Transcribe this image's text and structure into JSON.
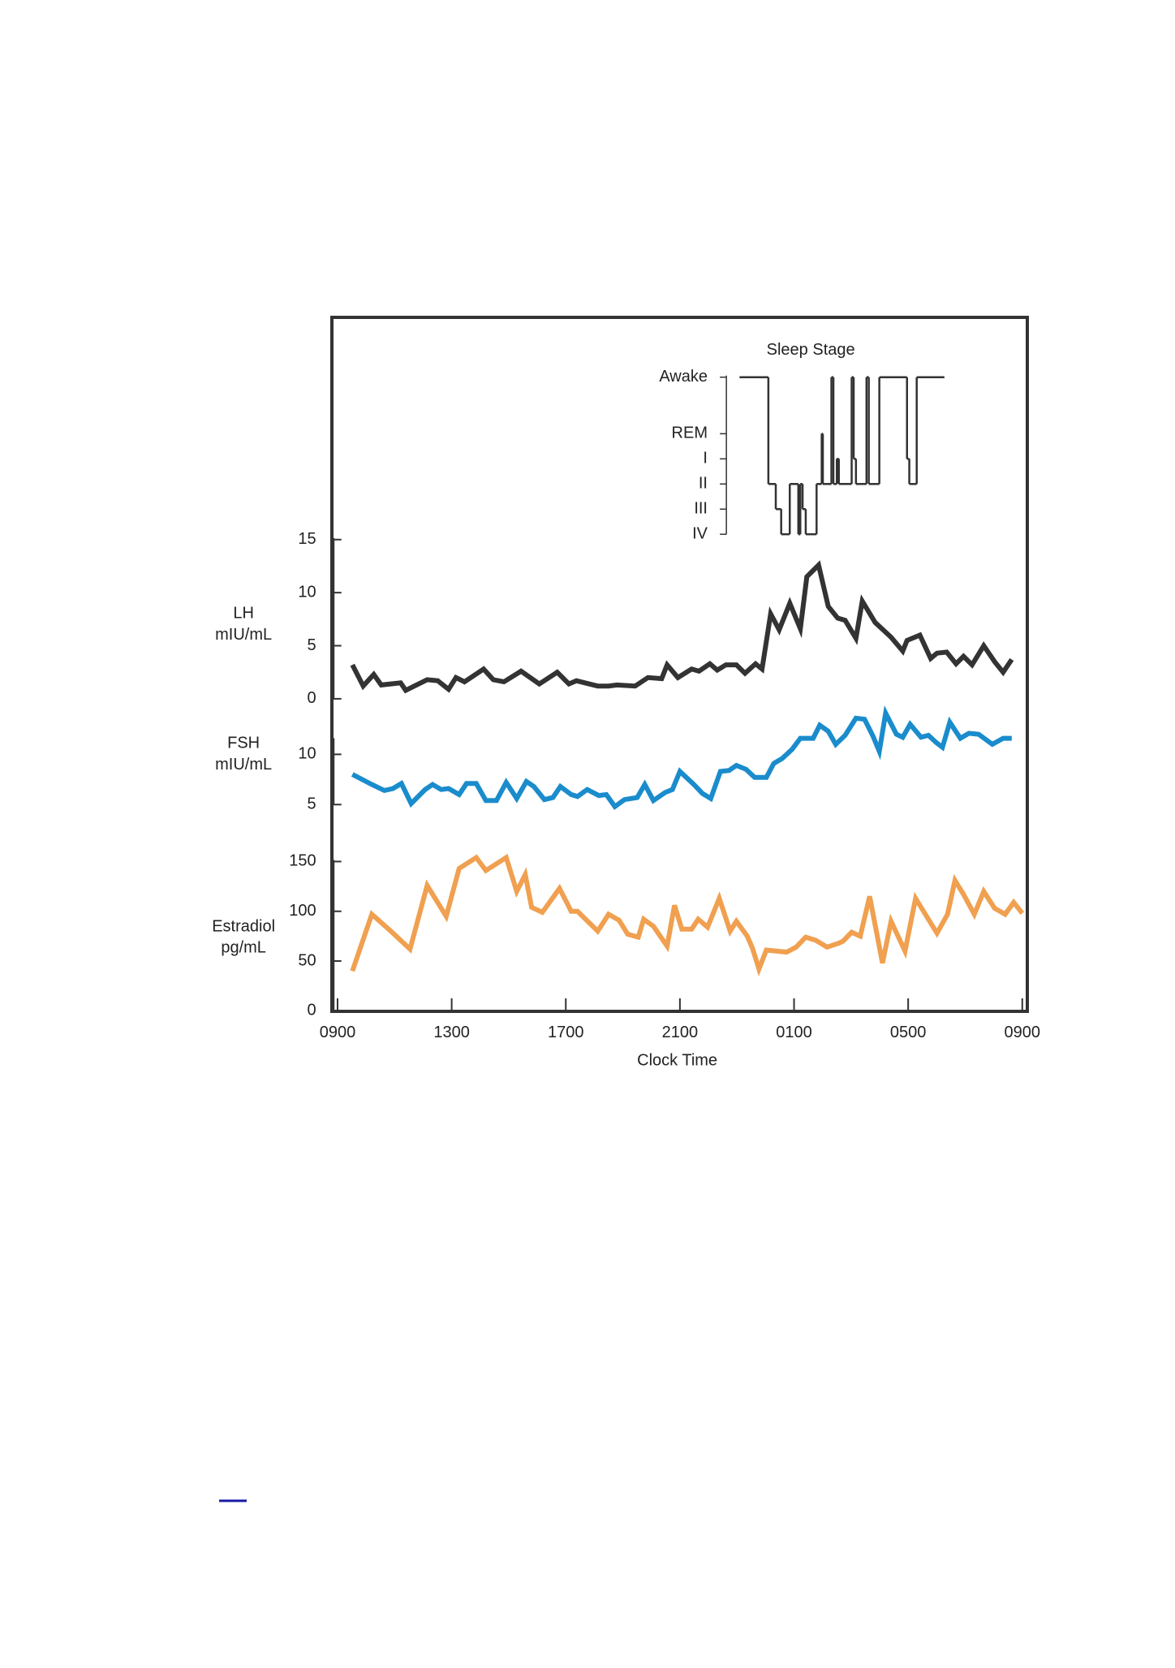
{
  "chart_data": [
    {
      "type": "step",
      "title": "Sleep Stage",
      "color": "#333333",
      "x": [
        14.09,
        15.1,
        15.36,
        15.55,
        15.85,
        16.15,
        16.22,
        16.3,
        16.41,
        16.79,
        16.97,
        17.01,
        17.31,
        17.38,
        17.5,
        17.57,
        18.02,
        18.09,
        18.17,
        18.54,
        18.62,
        18.99,
        19.96,
        20.04,
        20.3,
        21.27
      ],
      "values": [
        6.25,
        2,
        1,
        0,
        2,
        0,
        2,
        1,
        0,
        2,
        4,
        2,
        6.25,
        2,
        3,
        2,
        6.25,
        3,
        2,
        6.25,
        2,
        6.25,
        3,
        2,
        6.25,
        6.25
      ],
      "xlim": [
        0,
        24
      ],
      "ylim": [
        0,
        6.25
      ],
      "yticks": [
        {
          "value": 6.25,
          "label": "Awake"
        },
        {
          "value": 4,
          "label": "REM"
        },
        {
          "value": 3,
          "label": "I"
        },
        {
          "value": 2,
          "label": "II"
        },
        {
          "value": 1,
          "label": "III"
        },
        {
          "value": 0,
          "label": "IV"
        }
      ]
    },
    {
      "type": "line",
      "ylabel": [
        "LH",
        "mIU/mL"
      ],
      "color": "#333333",
      "x": [
        0.52,
        0.9,
        1.27,
        1.53,
        2.21,
        2.39,
        3.14,
        3.51,
        3.89,
        4.15,
        4.45,
        5.12,
        5.46,
        5.83,
        6.43,
        7.07,
        7.7,
        8.11,
        8.37,
        9.12,
        9.5,
        9.79,
        10.43,
        10.88,
        11.36,
        11.55,
        11.93,
        12.41,
        12.67,
        13.05,
        13.31,
        13.61,
        13.98,
        14.28,
        14.65,
        14.88,
        15.18,
        15.48,
        15.85,
        16.22,
        16.45,
        16.86,
        17.2,
        17.53,
        17.79,
        18.17,
        18.39,
        18.84,
        19.4,
        19.81,
        19.96,
        20.41,
        20.79,
        21.01,
        21.35,
        21.68,
        21.94,
        22.24,
        22.65,
        23.03,
        23.33,
        23.63
      ],
      "values": [
        3.2,
        1.2,
        2.3,
        1.3,
        1.5,
        0.8,
        1.8,
        1.7,
        0.9,
        2.0,
        1.6,
        2.8,
        1.8,
        1.6,
        2.6,
        1.4,
        2.5,
        1.4,
        1.7,
        1.2,
        1.2,
        1.3,
        1.2,
        2.0,
        1.9,
        3.2,
        2.0,
        2.8,
        2.6,
        3.3,
        2.7,
        3.2,
        3.2,
        2.4,
        3.3,
        2.8,
        8.0,
        6.5,
        9.0,
        6.6,
        11.5,
        12.6,
        8.7,
        7.6,
        7.4,
        5.7,
        9.2,
        7.2,
        5.8,
        4.5,
        5.5,
        6.0,
        3.8,
        4.3,
        4.4,
        3.3,
        4.0,
        3.2,
        5.0,
        3.5,
        2.5,
        3.7
      ],
      "xlim": [
        0,
        24
      ],
      "ylim": [
        0,
        15
      ],
      "yticks": [
        0,
        5,
        10,
        15
      ]
    },
    {
      "type": "line",
      "ylabel": [
        "FSH",
        "mIU/mL"
      ],
      "color": "#1a8ccc",
      "x": [
        0.52,
        1.2,
        1.64,
        1.94,
        2.24,
        2.58,
        3.07,
        3.33,
        3.63,
        3.89,
        4.26,
        4.52,
        4.86,
        5.2,
        5.57,
        5.91,
        6.28,
        6.62,
        6.88,
        7.25,
        7.55,
        7.81,
        8.19,
        8.41,
        8.75,
        9.16,
        9.42,
        9.72,
        10.06,
        10.5,
        10.77,
        11.07,
        11.48,
        11.74,
        12.0,
        12.49,
        12.79,
        13.08,
        13.42,
        13.72,
        13.98,
        14.32,
        14.62,
        15.03,
        15.29,
        15.59,
        15.93,
        16.22,
        16.67,
        16.9,
        17.2,
        17.46,
        17.79,
        18.17,
        18.47,
        18.77,
        18.99,
        19.21,
        19.59,
        19.81,
        20.07,
        20.45,
        20.71,
        20.97,
        21.2,
        21.46,
        21.83,
        22.13,
        22.47,
        22.95,
        23.33,
        23.63
      ],
      "values": [
        8.0,
        7.0,
        6.4,
        6.6,
        7.1,
        5.1,
        6.5,
        7.0,
        6.5,
        6.6,
        6.0,
        7.1,
        7.1,
        5.4,
        5.4,
        7.2,
        5.6,
        7.3,
        6.8,
        5.5,
        5.7,
        6.8,
        6.0,
        5.8,
        6.5,
        5.9,
        6.0,
        4.8,
        5.5,
        5.7,
        7.0,
        5.4,
        6.2,
        6.5,
        8.3,
        7.0,
        6.1,
        5.6,
        8.3,
        8.4,
        8.9,
        8.5,
        7.7,
        7.7,
        9.1,
        9.6,
        10.5,
        11.6,
        11.6,
        12.9,
        12.3,
        11.0,
        11.9,
        13.6,
        13.5,
        11.8,
        10.3,
        14.1,
        12.0,
        11.7,
        13.0,
        11.7,
        11.9,
        11.2,
        10.7,
        13.2,
        11.6,
        12.1,
        12.0,
        11.0,
        11.6,
        11.6
      ],
      "xlim": [
        0,
        24
      ],
      "ylim": [
        5,
        15
      ],
      "yticks": [
        5,
        10
      ]
    },
    {
      "type": "line",
      "ylabel": [
        "Estradiol",
        "pg/mL"
      ],
      "xlabel": "Clock Time",
      "color": "#f0a050",
      "x": [
        0.52,
        1.2,
        1.87,
        2.54,
        3.14,
        3.81,
        4.26,
        4.86,
        5.2,
        5.91,
        6.28,
        6.58,
        6.8,
        7.18,
        7.78,
        8.19,
        8.41,
        9.12,
        9.5,
        9.87,
        10.17,
        10.54,
        10.73,
        11.07,
        11.55,
        11.81,
        12.07,
        12.41,
        12.64,
        12.97,
        13.38,
        13.76,
        13.98,
        14.36,
        14.54,
        14.77,
        15.03,
        15.74,
        16.07,
        16.41,
        16.75,
        17.16,
        17.57,
        17.72,
        18.02,
        18.32,
        18.65,
        19.1,
        19.4,
        19.89,
        20.26,
        21.01,
        21.38,
        21.64,
        21.94,
        22.32,
        22.65,
        23.03,
        23.4,
        23.7,
        24.0
      ],
      "values": [
        40,
        97,
        80,
        62,
        126,
        95,
        143,
        154,
        141,
        154,
        120,
        137,
        104,
        99,
        123,
        100,
        100,
        80,
        97,
        91,
        77,
        74,
        92,
        85,
        65,
        106,
        82,
        82,
        92,
        84,
        113,
        80,
        90,
        75,
        63,
        42,
        61,
        59,
        64,
        74,
        71,
        64,
        68,
        70,
        79,
        75,
        115,
        48,
        90,
        60,
        113,
        78,
        97,
        131,
        117,
        97,
        120,
        103,
        97,
        109,
        98
      ],
      "xlim": [
        0,
        24
      ],
      "ylim": [
        0,
        160
      ],
      "yticks": [
        0,
        50,
        100,
        150
      ],
      "xticks": [
        {
          "value": 0,
          "label": "0900"
        },
        {
          "value": 4,
          "label": "1300"
        },
        {
          "value": 8,
          "label": "1700"
        },
        {
          "value": 12,
          "label": "2100"
        },
        {
          "value": 16,
          "label": "0100"
        },
        {
          "value": 20,
          "label": "0500"
        },
        {
          "value": 24,
          "label": "0900"
        }
      ]
    }
  ]
}
